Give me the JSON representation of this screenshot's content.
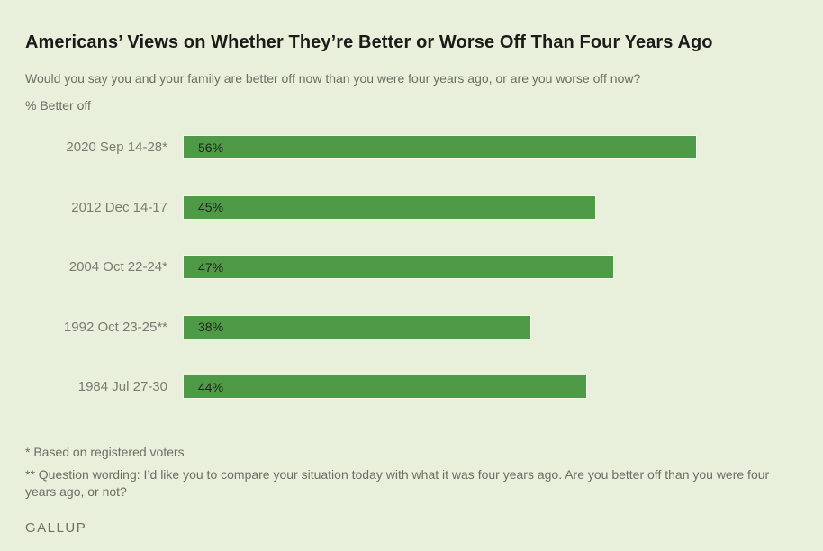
{
  "page": {
    "background": "#e8efdb"
  },
  "header": {
    "title": "Americans’ Views on Whether They’re Better or Worse Off Than Four Years Ago",
    "subtitle": "Would you say you and your family are better off now than you were four years ago, or are you worse off now?",
    "unit_label": "% Better off"
  },
  "chart_data": {
    "type": "bar",
    "orientation": "horizontal",
    "title": "Americans’ Views on Whether They’re Better or Worse Off Than Four Years Ago",
    "xlabel": "",
    "ylabel": "% Better off",
    "categories": [
      "2020 Sep 14-28*",
      "2012 Dec 14-17",
      "2004 Oct 22-24*",
      "1992 Oct 23-25**",
      "1984 Jul 27-30"
    ],
    "values": [
      56,
      45,
      47,
      38,
      44
    ],
    "value_labels": [
      "56%",
      "45%",
      "47%",
      "38%",
      "44%"
    ],
    "xlim": [
      0,
      67
    ],
    "grid": false,
    "legend": false,
    "bar_color": "#4f9a46"
  },
  "footnotes": {
    "note1": "* Based on registered voters",
    "note2": "** Question wording: I’d like you to compare your situation today with what it was four years ago. Are you better off than you were four years ago, or not?"
  },
  "source": {
    "brand": "GALLUP"
  }
}
